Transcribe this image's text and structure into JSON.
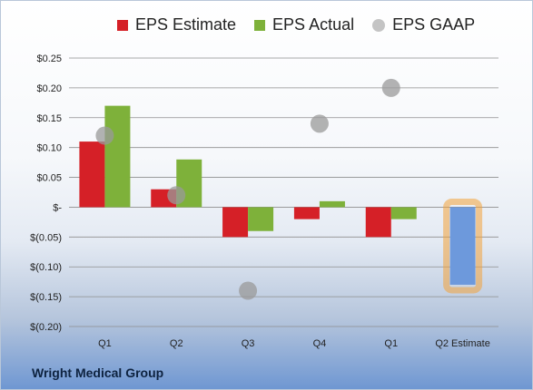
{
  "legend": {
    "estimate": "EPS Estimate",
    "actual": "EPS Actual",
    "gaap": "EPS GAAP"
  },
  "company": "Wright Medical Group",
  "colors": {
    "estimate": "#d52027",
    "actual": "#7eb13a",
    "gaap": "#9a9a9a",
    "forecast": "#6d99dc",
    "forecast_glow": "#f2a33a"
  },
  "chart_data": {
    "type": "bar",
    "categories": [
      "Q1",
      "Q2",
      "Q3",
      "Q4",
      "Q1",
      "Q2 Estimate"
    ],
    "yticks": [
      "$0.25",
      "$0.20",
      "$0.15",
      "$0.10",
      "$0.05",
      "$-",
      "$(0.05)",
      "$(0.10)",
      "$(0.15)",
      "$(0.20)"
    ],
    "ylim": [
      -0.2,
      0.25
    ],
    "grid": true,
    "legend_position": "top",
    "series": [
      {
        "name": "EPS Estimate",
        "values": [
          0.11,
          0.03,
          -0.05,
          -0.02,
          -0.05,
          null
        ]
      },
      {
        "name": "EPS Actual",
        "values": [
          0.17,
          0.08,
          -0.04,
          0.01,
          -0.02,
          null
        ]
      },
      {
        "name": "EPS GAAP",
        "values": [
          0.12,
          0.02,
          -0.14,
          0.14,
          0.2,
          null
        ]
      }
    ],
    "forecast": {
      "category": "Q2 Estimate",
      "value": -0.13
    }
  }
}
